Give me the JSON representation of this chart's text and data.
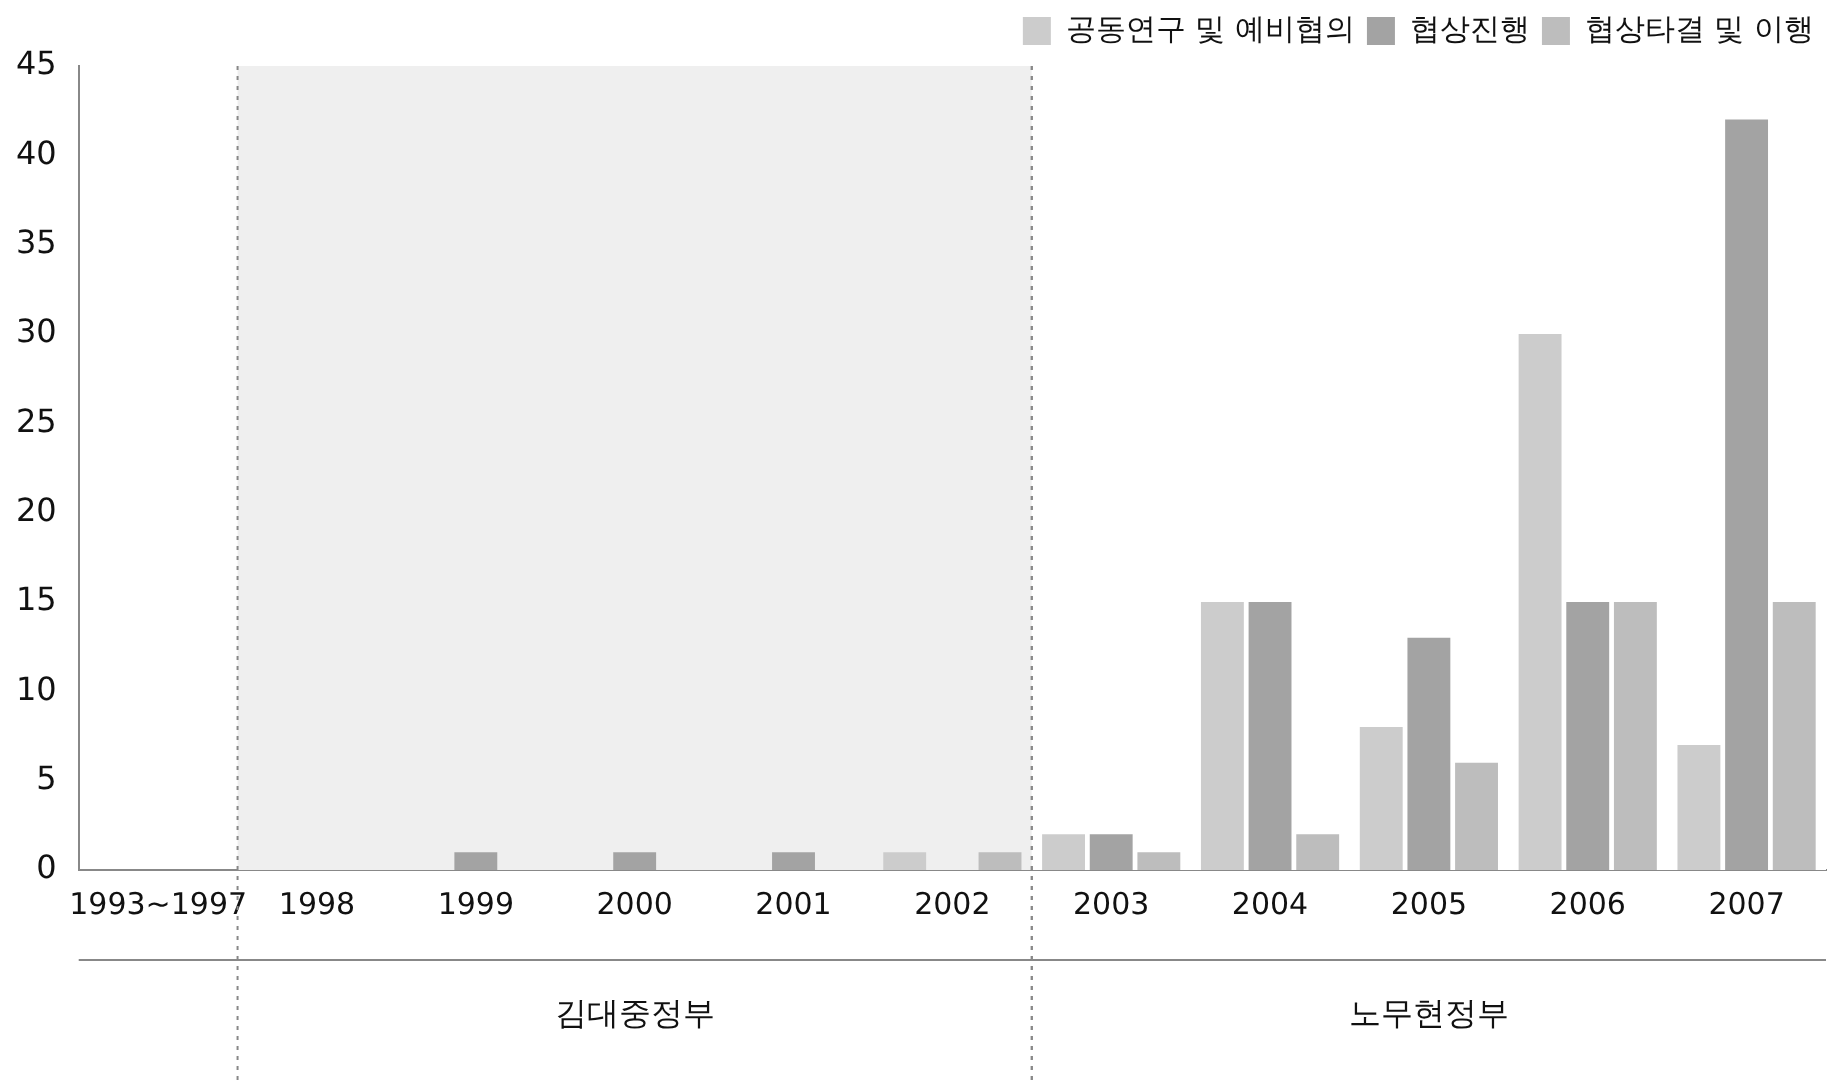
{
  "chart_data": {
    "type": "bar",
    "categories": [
      "1993~1997",
      "1998",
      "1999",
      "2000",
      "2001",
      "2002",
      "2003",
      "2004",
      "2005",
      "2006",
      "2007"
    ],
    "series": [
      {
        "name": "공동연구 및 예비협의",
        "color": "#cccccc",
        "values": [
          0,
          0,
          0,
          0,
          0,
          1,
          2,
          15,
          8,
          30,
          7
        ]
      },
      {
        "name": "협상진행",
        "color": "#a3a3a3",
        "values": [
          0,
          0,
          1,
          1,
          1,
          0,
          2,
          15,
          13,
          15,
          42
        ]
      },
      {
        "name": "협상타결 및 이행",
        "color": "#bdbdbd",
        "values": [
          0,
          0,
          0,
          0,
          0,
          1,
          1,
          2,
          6,
          15,
          15
        ]
      }
    ],
    "ylim": [
      0,
      45
    ],
    "yticks": [
      0,
      5,
      10,
      15,
      20,
      25,
      30,
      35,
      40,
      45
    ],
    "grid": false,
    "legend": "top right",
    "bands": [
      {
        "axis": "x",
        "from": "1998",
        "to": "2002",
        "color": "#efefef"
      },
      {
        "axis": "x",
        "from": "2003",
        "to": "2007",
        "color": "#ffffff"
      }
    ],
    "annotations": [
      "김대중정부",
      "노무현정부"
    ]
  }
}
